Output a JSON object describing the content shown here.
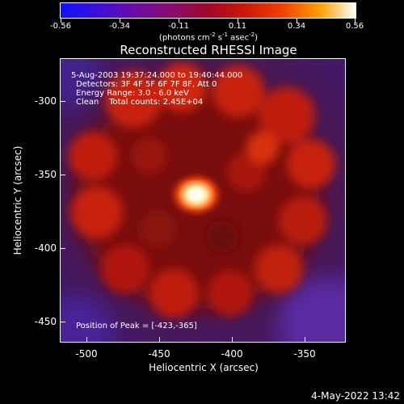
{
  "colorbar": {
    "ticks": [
      "-0.56",
      "-0.34",
      "-0.11",
      "0.11",
      "0.34",
      "0.56"
    ],
    "unit_prefix": "(photons cm",
    "unit_sup1": "-2",
    "unit_mid": " s",
    "unit_sup2": "-1",
    "unit_mid2": " asec",
    "unit_sup3": "-2",
    "unit_suffix": ")"
  },
  "title": "Reconstructed RHESSI Image",
  "annotations": {
    "line1": "5-Aug-2003 19:37:24.000 to 19:40:44.000",
    "line2": "Detectors: 3F 4F 5F 6F 7F 8F, Att 0",
    "line3": "Energy Range: 3.0 - 6.0 keV",
    "line4": "Clean    Total counts: 2.45E+04",
    "peak": "Position of Peak = [-423,-365]"
  },
  "axes": {
    "x_title": "Heliocentric X (arcsec)",
    "y_title": "Heliocentric Y (arcsec)",
    "x_ticks": [
      "-500",
      "-450",
      "-400",
      "-350"
    ],
    "y_ticks": [
      "-300",
      "-350",
      "-400",
      "-450"
    ]
  },
  "timestamp": "4-May-2022 13:42"
}
